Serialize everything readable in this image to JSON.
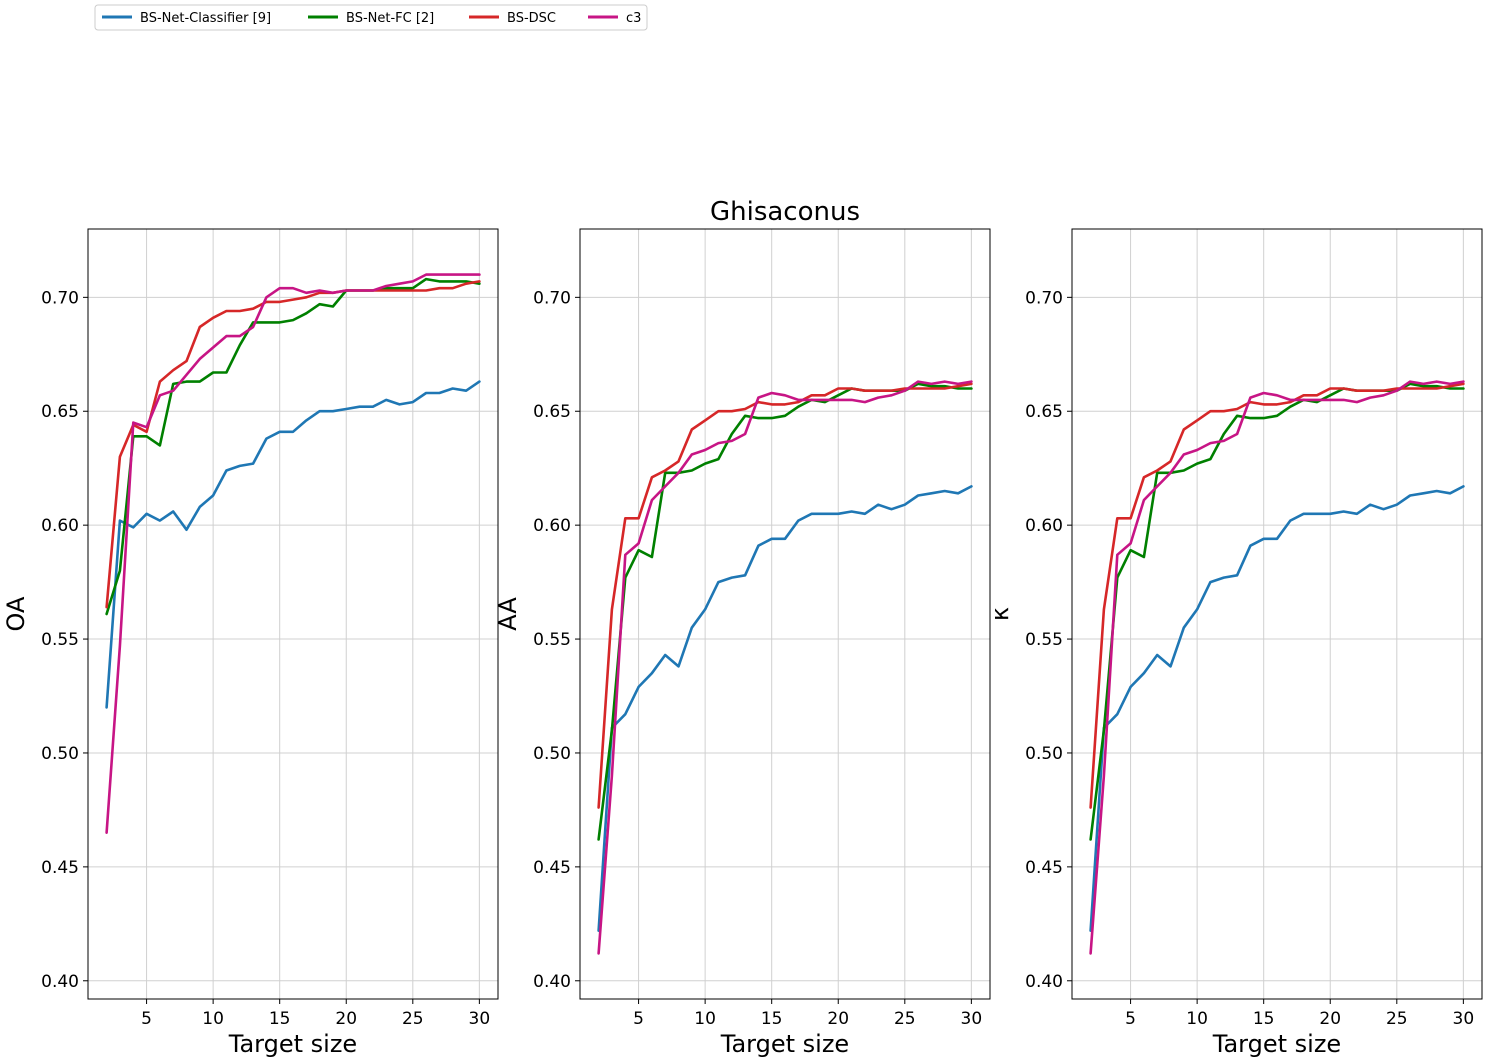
{
  "chart_data": [
    {
      "type": "line",
      "title": "",
      "xlabel": "Target size",
      "ylabel": "OA",
      "xlim": [
        0.6,
        31.4
      ],
      "ylim": [
        0.392,
        0.73
      ],
      "xticks": [
        5,
        10,
        15,
        20,
        25,
        30
      ],
      "yticks": [
        "0.40",
        "0.45",
        "0.50",
        "0.55",
        "0.60",
        "0.65",
        "0.70"
      ],
      "grid": true,
      "x": [
        2,
        3,
        4,
        5,
        6,
        7,
        8,
        9,
        10,
        11,
        12,
        13,
        14,
        15,
        16,
        17,
        18,
        19,
        20,
        21,
        22,
        23,
        24,
        25,
        26,
        27,
        28,
        29,
        30
      ],
      "series": [
        {
          "name": "BS-Net-Classifier [9]",
          "color": "#1f77b4",
          "values": [
            0.52,
            0.602,
            0.599,
            0.605,
            0.602,
            0.606,
            0.598,
            0.608,
            0.613,
            0.624,
            0.626,
            0.627,
            0.638,
            0.641,
            0.641,
            0.646,
            0.65,
            0.65,
            0.651,
            0.652,
            0.652,
            0.655,
            0.653,
            0.654,
            0.658,
            0.658,
            0.66,
            0.659,
            0.663
          ]
        },
        {
          "name": "BS-Net-FC [2]",
          "color": "#008000",
          "values": [
            0.561,
            0.58,
            0.639,
            0.639,
            0.635,
            0.662,
            0.663,
            0.663,
            0.667,
            0.667,
            0.679,
            0.689,
            0.689,
            0.689,
            0.69,
            0.693,
            0.697,
            0.696,
            0.703,
            0.703,
            0.703,
            0.704,
            0.704,
            0.704,
            0.708,
            0.707,
            0.707,
            0.707,
            0.706
          ]
        },
        {
          "name": "BS-DSC",
          "color": "#d62728",
          "values": [
            0.564,
            0.63,
            0.644,
            0.641,
            0.663,
            0.668,
            0.672,
            0.687,
            0.691,
            0.694,
            0.694,
            0.695,
            0.698,
            0.698,
            0.699,
            0.7,
            0.702,
            0.702,
            0.703,
            0.703,
            0.703,
            0.703,
            0.703,
            0.703,
            0.703,
            0.704,
            0.704,
            0.706,
            0.707
          ]
        },
        {
          "name": "c3",
          "color": "#c71585",
          "values": [
            0.465,
            0.547,
            0.645,
            0.643,
            0.657,
            0.659,
            0.666,
            0.673,
            0.678,
            0.683,
            0.683,
            0.687,
            0.7,
            0.704,
            0.704,
            0.702,
            0.703,
            0.702,
            0.703,
            0.703,
            0.703,
            0.705,
            0.706,
            0.707,
            0.71,
            0.71,
            0.71,
            0.71,
            0.71
          ]
        }
      ]
    },
    {
      "type": "line",
      "title": "Ghisaconus",
      "xlabel": "Target size",
      "ylabel": "AA",
      "xlim": [
        0.6,
        31.4
      ],
      "ylim": [
        0.392,
        0.73
      ],
      "xticks": [
        5,
        10,
        15,
        20,
        25,
        30
      ],
      "yticks": [
        "0.40",
        "0.45",
        "0.50",
        "0.55",
        "0.60",
        "0.65",
        "0.70"
      ],
      "grid": true,
      "x": [
        2,
        3,
        4,
        5,
        6,
        7,
        8,
        9,
        10,
        11,
        12,
        13,
        14,
        15,
        16,
        17,
        18,
        19,
        20,
        21,
        22,
        23,
        24,
        25,
        26,
        27,
        28,
        29,
        30
      ],
      "series": [
        {
          "name": "BS-Net-Classifier [9]",
          "color": "#1f77b4",
          "values": [
            0.422,
            0.511,
            0.517,
            0.529,
            0.535,
            0.543,
            0.538,
            0.555,
            0.563,
            0.575,
            0.577,
            0.578,
            0.591,
            0.594,
            0.594,
            0.602,
            0.605,
            0.605,
            0.605,
            0.606,
            0.605,
            0.609,
            0.607,
            0.609,
            0.613,
            0.614,
            0.615,
            0.614,
            0.617
          ]
        },
        {
          "name": "BS-Net-FC [2]",
          "color": "#008000",
          "values": [
            0.462,
            0.51,
            0.577,
            0.589,
            0.586,
            0.623,
            0.623,
            0.624,
            0.627,
            0.629,
            0.64,
            0.648,
            0.647,
            0.647,
            0.648,
            0.652,
            0.655,
            0.654,
            0.657,
            0.66,
            0.659,
            0.659,
            0.659,
            0.659,
            0.662,
            0.661,
            0.661,
            0.66,
            0.66
          ]
        },
        {
          "name": "BS-DSC",
          "color": "#d62728",
          "values": [
            0.476,
            0.563,
            0.603,
            0.603,
            0.621,
            0.624,
            0.628,
            0.642,
            0.646,
            0.65,
            0.65,
            0.651,
            0.654,
            0.653,
            0.653,
            0.654,
            0.657,
            0.657,
            0.66,
            0.66,
            0.659,
            0.659,
            0.659,
            0.66,
            0.66,
            0.66,
            0.66,
            0.661,
            0.662
          ]
        },
        {
          "name": "c3",
          "color": "#c71585",
          "values": [
            0.412,
            0.49,
            0.587,
            0.592,
            0.611,
            0.617,
            0.623,
            0.631,
            0.633,
            0.636,
            0.637,
            0.64,
            0.656,
            0.658,
            0.657,
            0.655,
            0.655,
            0.655,
            0.655,
            0.655,
            0.654,
            0.656,
            0.657,
            0.659,
            0.663,
            0.662,
            0.663,
            0.662,
            0.663
          ]
        }
      ]
    },
    {
      "type": "line",
      "title": "",
      "xlabel": "Target size",
      "ylabel": "κ",
      "xlim": [
        0.6,
        31.4
      ],
      "ylim": [
        0.392,
        0.73
      ],
      "xticks": [
        5,
        10,
        15,
        20,
        25,
        30
      ],
      "yticks": [
        "0.40",
        "0.45",
        "0.50",
        "0.55",
        "0.60",
        "0.65",
        "0.70"
      ],
      "grid": true,
      "x": [
        2,
        3,
        4,
        5,
        6,
        7,
        8,
        9,
        10,
        11,
        12,
        13,
        14,
        15,
        16,
        17,
        18,
        19,
        20,
        21,
        22,
        23,
        24,
        25,
        26,
        27,
        28,
        29,
        30
      ],
      "series": [
        {
          "name": "BS-Net-Classifier [9]",
          "color": "#1f77b4",
          "values": [
            0.422,
            0.511,
            0.517,
            0.529,
            0.535,
            0.543,
            0.538,
            0.555,
            0.563,
            0.575,
            0.577,
            0.578,
            0.591,
            0.594,
            0.594,
            0.602,
            0.605,
            0.605,
            0.605,
            0.606,
            0.605,
            0.609,
            0.607,
            0.609,
            0.613,
            0.614,
            0.615,
            0.614,
            0.617
          ]
        },
        {
          "name": "BS-Net-FC [2]",
          "color": "#008000",
          "values": [
            0.462,
            0.51,
            0.577,
            0.589,
            0.586,
            0.623,
            0.623,
            0.624,
            0.627,
            0.629,
            0.64,
            0.648,
            0.647,
            0.647,
            0.648,
            0.652,
            0.655,
            0.654,
            0.657,
            0.66,
            0.659,
            0.659,
            0.659,
            0.659,
            0.662,
            0.661,
            0.661,
            0.66,
            0.66
          ]
        },
        {
          "name": "BS-DSC",
          "color": "#d62728",
          "values": [
            0.476,
            0.563,
            0.603,
            0.603,
            0.621,
            0.624,
            0.628,
            0.642,
            0.646,
            0.65,
            0.65,
            0.651,
            0.654,
            0.653,
            0.653,
            0.654,
            0.657,
            0.657,
            0.66,
            0.66,
            0.659,
            0.659,
            0.659,
            0.66,
            0.66,
            0.66,
            0.66,
            0.661,
            0.662
          ]
        },
        {
          "name": "c3",
          "color": "#c71585",
          "values": [
            0.412,
            0.49,
            0.587,
            0.592,
            0.611,
            0.617,
            0.623,
            0.631,
            0.633,
            0.636,
            0.637,
            0.64,
            0.656,
            0.658,
            0.657,
            0.655,
            0.655,
            0.655,
            0.655,
            0.655,
            0.654,
            0.656,
            0.657,
            0.659,
            0.663,
            0.662,
            0.663,
            0.662,
            0.663
          ]
        }
      ]
    }
  ],
  "legend": {
    "placement": "top-left",
    "entries": [
      {
        "label": "BS-Net-Classifier [9]",
        "color": "#1f77b4"
      },
      {
        "label": "BS-Net-FC [2]",
        "color": "#008000"
      },
      {
        "label": "BS-DSC",
        "color": "#d62728"
      },
      {
        "label": "c3",
        "color": "#c71585"
      }
    ]
  }
}
